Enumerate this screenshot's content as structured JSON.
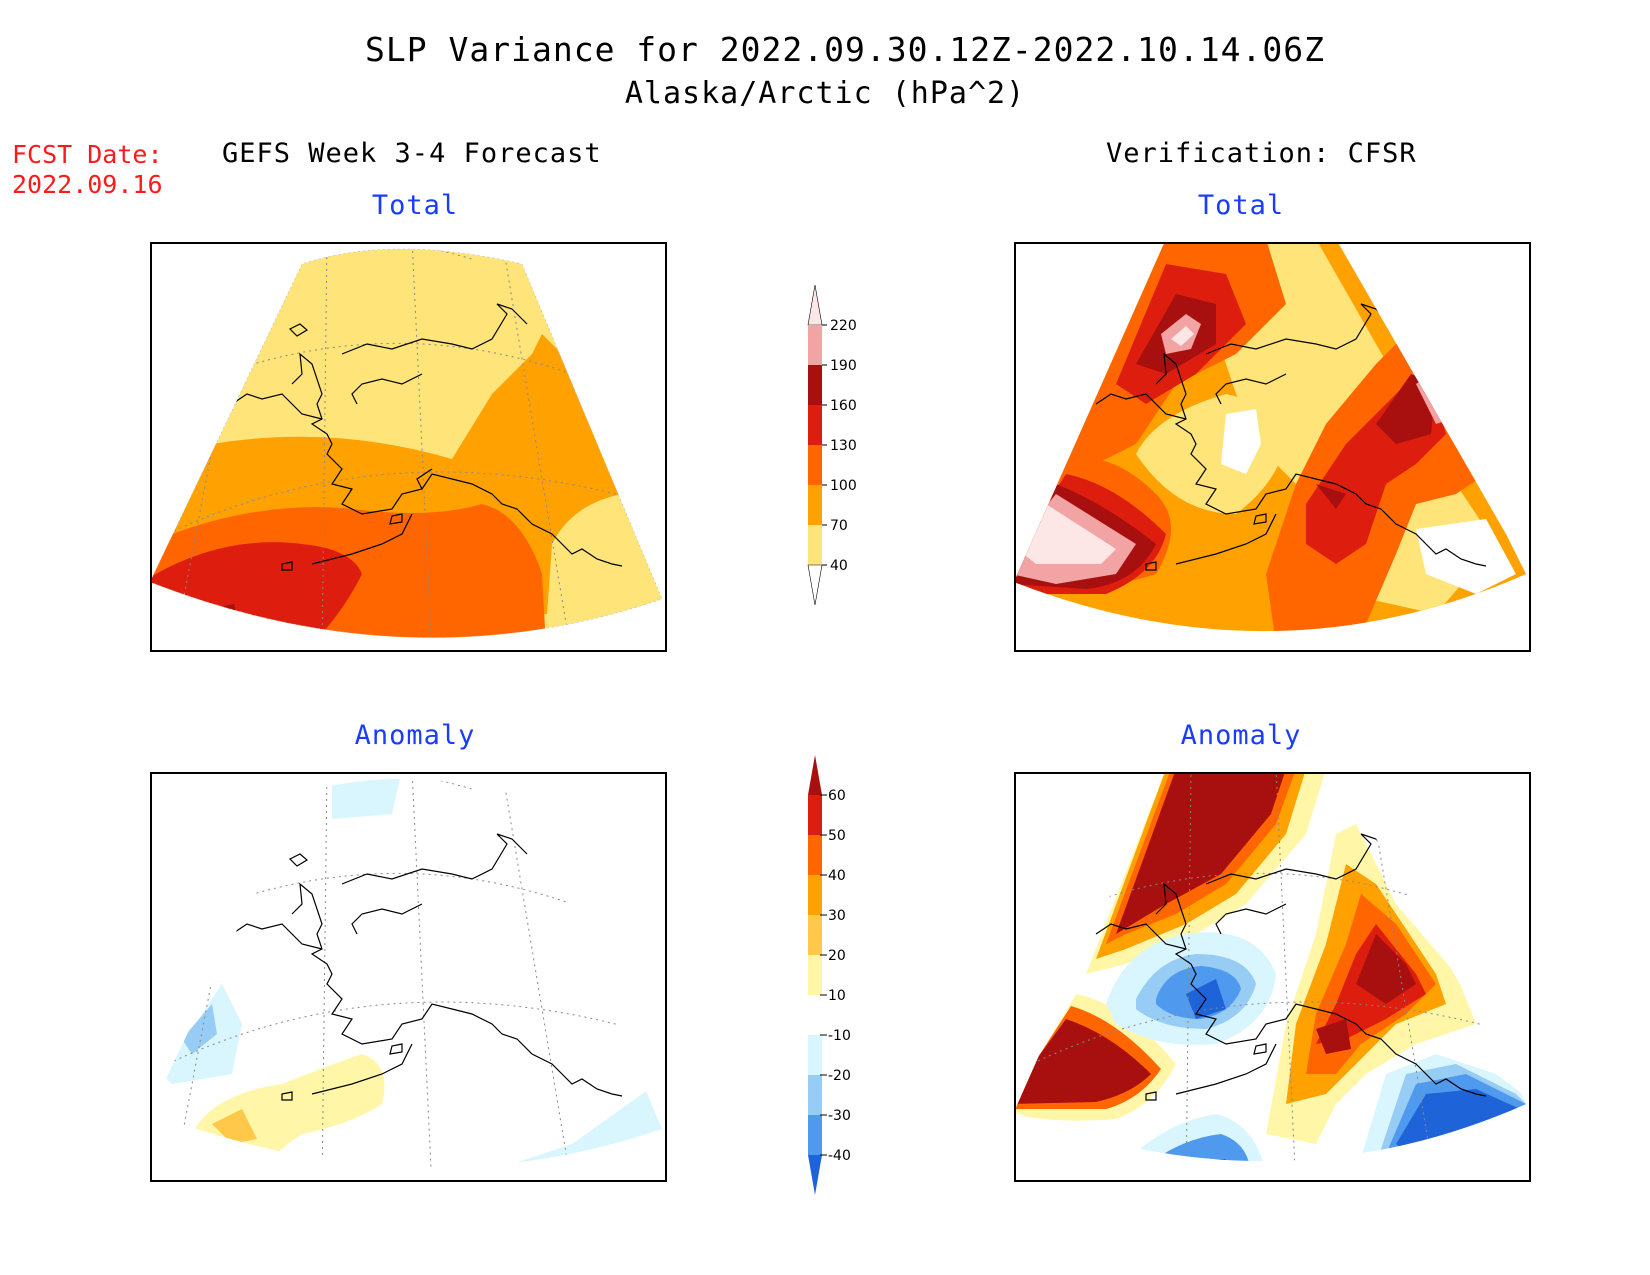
{
  "header": {
    "title": "SLP Variance for 2022.09.30.12Z-2022.10.14.06Z",
    "subtitle": "Alaska/Arctic (hPa^2)",
    "fcst_label": "FCST Date:",
    "fcst_date": "2022.09.16"
  },
  "columns": {
    "left": "GEFS Week 3-4 Forecast",
    "right": "Verification: CFSR"
  },
  "panels": {
    "total_forecast": "Total",
    "total_verification": "Total",
    "anomaly_forecast": "Anomaly",
    "anomaly_verification": "Anomaly"
  },
  "colorbars": {
    "total": {
      "labels": [
        "220",
        "190",
        "160",
        "130",
        "100",
        "70",
        "40"
      ],
      "colors": [
        "#fde6e6",
        "#f2a3a3",
        "#a80f0f",
        "#dd1e0f",
        "#ff6600",
        "#ffa100",
        "#ffe47a"
      ]
    },
    "anomaly": {
      "labels": [
        "60",
        "50",
        "40",
        "30",
        "20",
        "10",
        "-10",
        "-20",
        "-30",
        "-40"
      ],
      "colors": [
        "#a80f0f",
        "#dd1e0f",
        "#ff6600",
        "#ffa100",
        "#ffc84a",
        "#fff6a8",
        "#ffffff",
        "#d9f6ff",
        "#97ccf5",
        "#4f9aee",
        "#1e64d8"
      ]
    }
  }
}
